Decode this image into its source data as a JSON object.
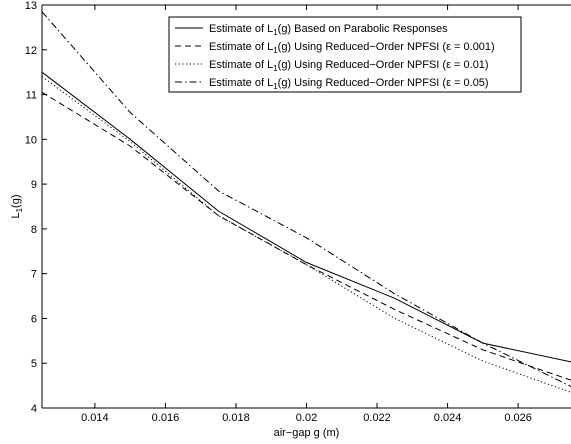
{
  "chart_data": {
    "type": "line",
    "xlabel": "air−gap g (m)",
    "ylabel": {
      "base": "L",
      "sub": "1",
      "suffix": "(g)"
    },
    "xlim": [
      0.0125,
      0.0275
    ],
    "ylim": [
      4,
      13
    ],
    "xticks": [
      0.014,
      0.016,
      0.018,
      0.02,
      0.022,
      0.024,
      0.026
    ],
    "xtick_labels": [
      "0.014",
      "0.016",
      "0.018",
      "0.02",
      "0.022",
      "0.024",
      "0.026"
    ],
    "yticks": [
      4,
      5,
      6,
      7,
      8,
      9,
      10,
      11,
      12,
      13
    ],
    "ytick_labels": [
      "4",
      "5",
      "6",
      "7",
      "8",
      "9",
      "10",
      "11",
      "12",
      "13"
    ],
    "grid": false,
    "legend_position": "top-right",
    "series": [
      {
        "legend": {
          "pre": "Estimate of L",
          "sub": "1",
          "post": "(g) Based on Parabolic Responses"
        },
        "dash": "solid",
        "x": [
          0.0125,
          0.015,
          0.0175,
          0.02,
          0.0225,
          0.025,
          0.0275
        ],
        "y": [
          11.5,
          10.0,
          8.4,
          7.25,
          6.45,
          5.45,
          5.03
        ]
      },
      {
        "legend": {
          "pre": "Estimate of L",
          "sub": "1",
          "post": "(g) Using Reduced−Order NPFSI (ε = 0.001)"
        },
        "dash": "dashed",
        "x": [
          0.0125,
          0.015,
          0.0175,
          0.02,
          0.0225,
          0.025,
          0.0275
        ],
        "y": [
          11.05,
          9.85,
          8.3,
          7.2,
          6.2,
          5.3,
          4.62
        ]
      },
      {
        "legend": {
          "pre": "Estimate of L",
          "sub": "1",
          "post": "(g) Using Reduced−Order NPFSI (ε = 0.01)"
        },
        "dash": "dotted",
        "x": [
          0.0125,
          0.015,
          0.0175,
          0.02,
          0.0225,
          0.025,
          0.0275
        ],
        "y": [
          11.4,
          9.95,
          8.3,
          7.2,
          6.0,
          5.05,
          4.35
        ]
      },
      {
        "legend": {
          "pre": "Estimate of L",
          "sub": "1",
          "post": "(g) Using Reduced−Order NPFSI (ε = 0.05)"
        },
        "dash": "dashdot",
        "x": [
          0.0125,
          0.015,
          0.0175,
          0.02,
          0.0225,
          0.025,
          0.0275
        ],
        "y": [
          12.85,
          10.6,
          8.85,
          7.8,
          6.55,
          5.45,
          4.48
        ]
      }
    ]
  }
}
